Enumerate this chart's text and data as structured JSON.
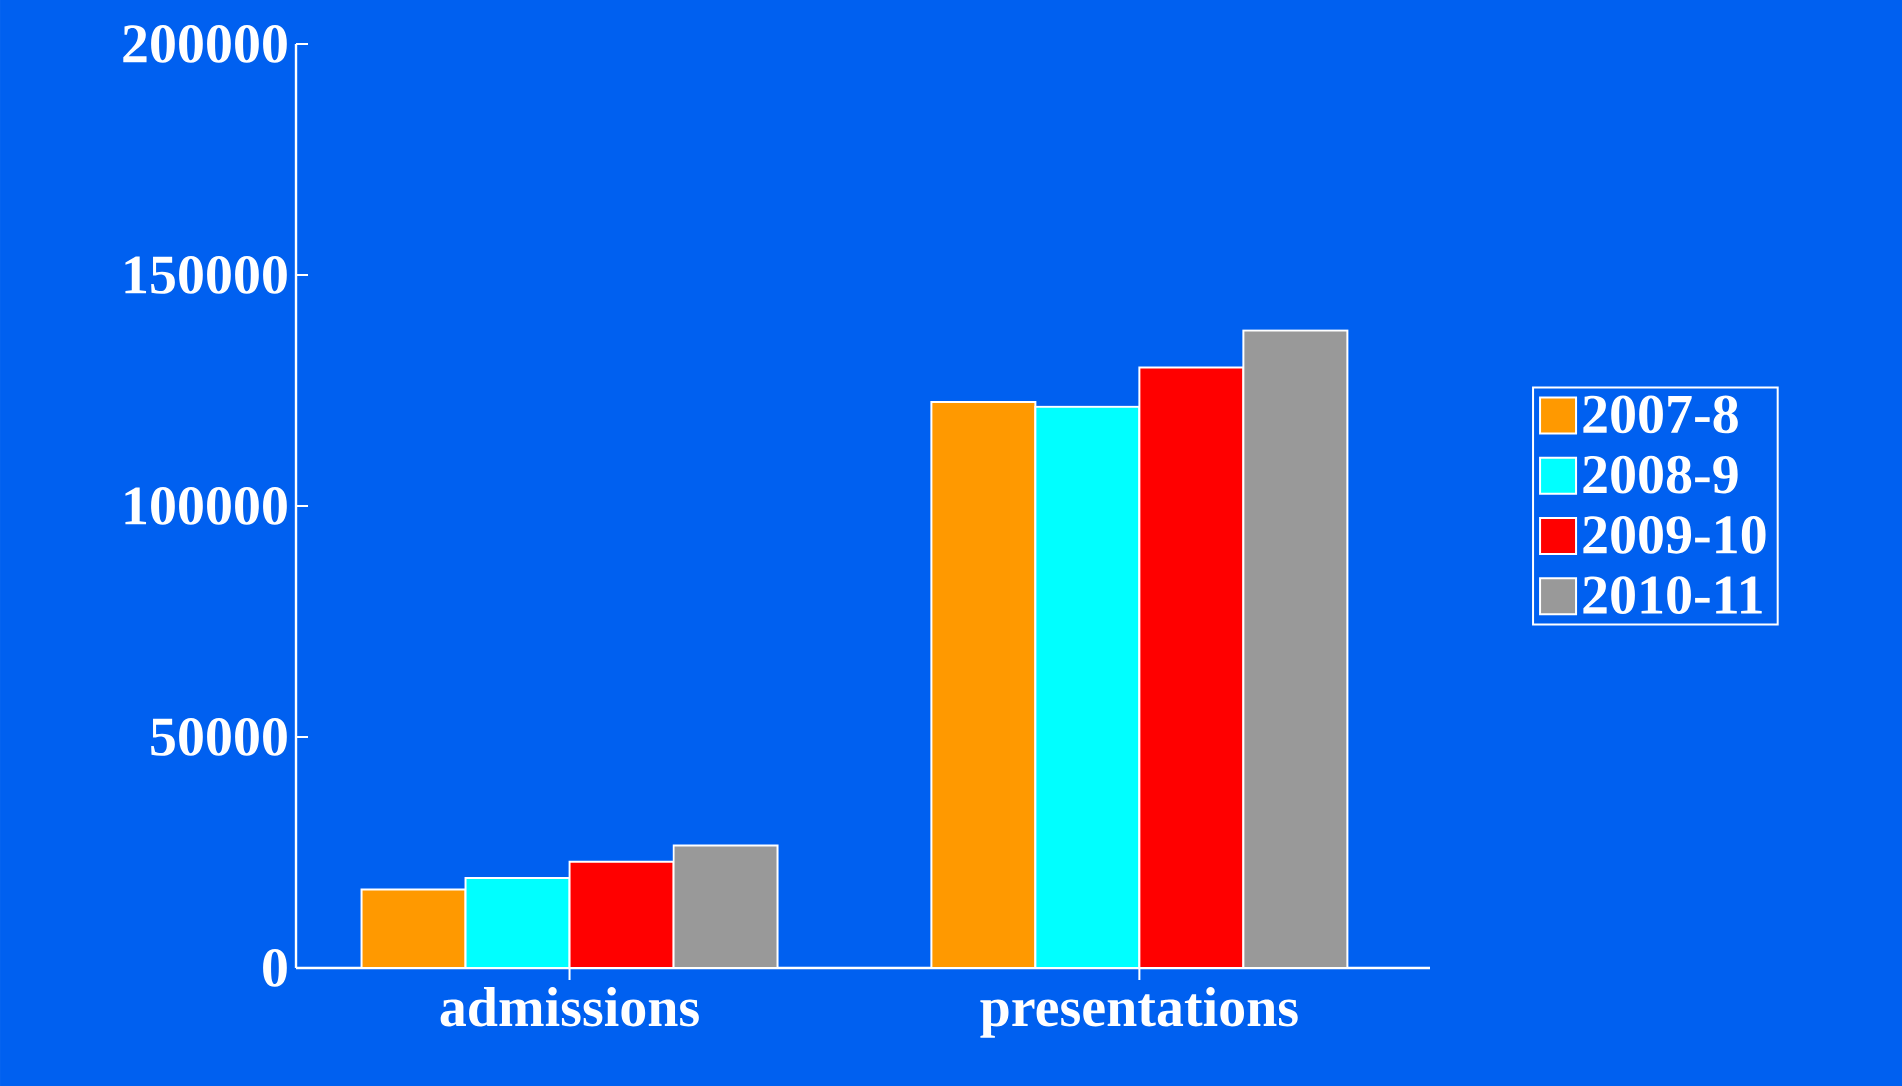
{
  "chart_data": {
    "type": "bar",
    "categories": [
      "admissions",
      "presentations"
    ],
    "series": [
      {
        "name": "2007-8",
        "color": "#ff9900",
        "values": [
          17000,
          122500
        ]
      },
      {
        "name": "2008-9",
        "color": "#00ffff",
        "values": [
          19500,
          121500
        ]
      },
      {
        "name": "2009-10",
        "color": "#ff0000",
        "values": [
          23000,
          130000
        ]
      },
      {
        "name": "2010-11",
        "color": "#999999",
        "values": [
          26500,
          138000
        ]
      }
    ],
    "ylim": [
      0,
      200000
    ],
    "yticks": [
      0,
      50000,
      100000,
      150000,
      200000
    ],
    "grid": false,
    "legend": "right"
  }
}
